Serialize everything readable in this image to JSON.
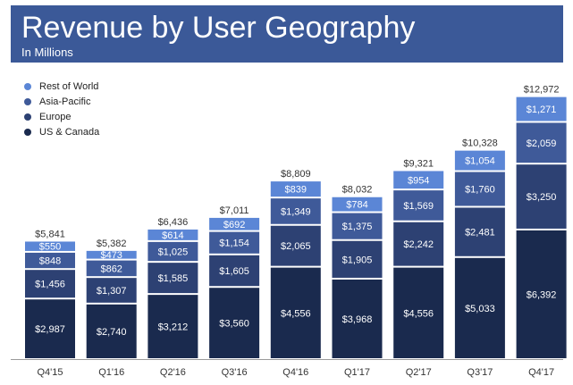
{
  "header": {
    "title": "Revenue by User Geography",
    "subtitle": "In Millions"
  },
  "colors": {
    "header_bg": "#3b5998",
    "us_canada": "#1a2a4e",
    "europe": "#2d4173",
    "asia_pacific": "#3f5a99",
    "rest_of_world": "#5b86d6",
    "label_text": "#ffffff",
    "total_text": "#333333"
  },
  "legend": [
    {
      "label": "Rest of World",
      "color": "#5b86d6"
    },
    {
      "label": "Asia-Pacific",
      "color": "#3f5a99"
    },
    {
      "label": "Europe",
      "color": "#2d4173"
    },
    {
      "label": "US & Canada",
      "color": "#1a2a4e"
    }
  ],
  "chart_data": {
    "type": "bar",
    "stacked": true,
    "title": "Revenue by User Geography",
    "subtitle": "In Millions",
    "categories": [
      "Q4'15",
      "Q1'16",
      "Q2'16",
      "Q3'16",
      "Q4'16",
      "Q1'17",
      "Q2'17",
      "Q3'17",
      "Q4'17"
    ],
    "series": [
      {
        "name": "US & Canada",
        "color": "#1a2a4e",
        "values": [
          2987,
          2740,
          3212,
          3560,
          4556,
          3968,
          4556,
          5033,
          6392
        ],
        "labels": [
          "$2,987",
          "$2,740",
          "$3,212",
          "$3,560",
          "$4,556",
          "$3,968",
          "$4,556",
          "$5,033",
          "$6,392"
        ]
      },
      {
        "name": "Europe",
        "color": "#2d4173",
        "values": [
          1456,
          1307,
          1585,
          1605,
          2065,
          1905,
          2242,
          2481,
          3250
        ],
        "labels": [
          "$1,456",
          "$1,307",
          "$1,585",
          "$1,605",
          "$2,065",
          "$1,905",
          "$2,242",
          "$2,481",
          "$3,250"
        ]
      },
      {
        "name": "Asia-Pacific",
        "color": "#3f5a99",
        "values": [
          848,
          862,
          1025,
          1154,
          1349,
          1375,
          1569,
          1760,
          2059
        ],
        "labels": [
          "$848",
          "$862",
          "$1,025",
          "$1,154",
          "$1,349",
          "$1,375",
          "$1,569",
          "$1,760",
          "$2,059"
        ]
      },
      {
        "name": "Rest of World",
        "color": "#5b86d6",
        "values": [
          550,
          473,
          614,
          692,
          839,
          784,
          954,
          1054,
          1271
        ],
        "labels": [
          "$550",
          "$473",
          "$614",
          "$692",
          "$839",
          "$784",
          "$954",
          "$1,054",
          "$1,271"
        ]
      }
    ],
    "totals": [
      5841,
      5382,
      6436,
      7011,
      8809,
      8032,
      9321,
      10328,
      12972
    ],
    "total_labels": [
      "$5,841",
      "$5,382",
      "$6,436",
      "$7,011",
      "$8,809",
      "$8,032",
      "$9,321",
      "$10,328",
      "$12,972"
    ],
    "ylim": [
      0,
      13000
    ],
    "grid": false,
    "legend_position": "top-left"
  }
}
